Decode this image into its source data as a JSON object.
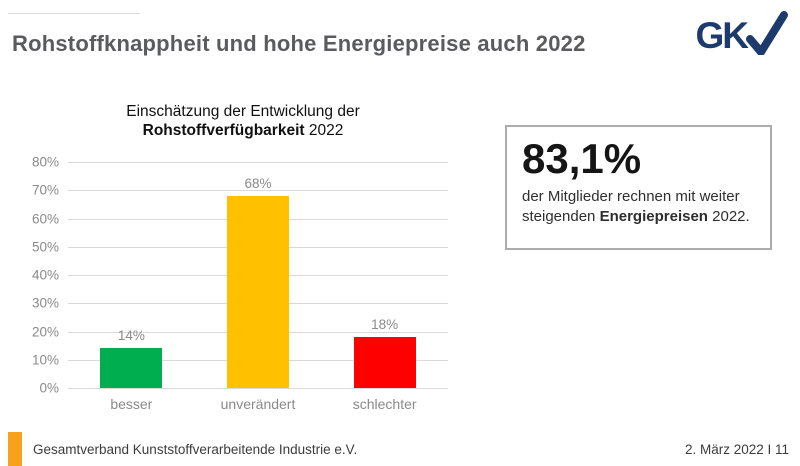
{
  "header": {
    "title": "Rohstoffknappheit und hohe Energiepreise auch 2022",
    "logo": {
      "text": "GK",
      "check_icon": "checkmark-v",
      "color": "#1d3a6d"
    }
  },
  "chart": {
    "title_line1": "Einschätzung der Entwicklung der",
    "title_bold": "Rohstoffverfügbarkeit",
    "title_year": " 2022"
  },
  "chart_data": {
    "type": "bar",
    "title": "Einschätzung der Entwicklung der Rohstoffverfügbarkeit 2022",
    "categories": [
      "besser",
      "unverändert",
      "schlechter"
    ],
    "values": [
      14,
      68,
      18
    ],
    "value_labels": [
      "14%",
      "68%",
      "18%"
    ],
    "bar_colors": [
      "#00ae4f",
      "#ffc000",
      "#fe0000"
    ],
    "xlabel": "",
    "ylabel": "",
    "ylim": [
      0,
      80
    ],
    "ytick_step": 10,
    "ytick_labels": [
      "0%",
      "10%",
      "20%",
      "30%",
      "40%",
      "50%",
      "60%",
      "70%",
      "80%"
    ],
    "grid": true,
    "legend": false
  },
  "stat_box": {
    "value": "83,1%",
    "line1": "der Mitglieder rechnen mit weiter",
    "line2_pre": "steigenden ",
    "line2_bold": "Energiepreisen",
    "line2_post": " 2022."
  },
  "footer": {
    "organization": "Gesamtverband Kunststoffverarbeitende Industrie e.V.",
    "date_slide": "2. März 2022 I 11",
    "accent_color": "#f7a11c"
  },
  "colors": {
    "page_title": "#595b5e",
    "axis_text": "#8a8a8a",
    "gridline": "#d9d9d9",
    "stat_box_border": "#adadad"
  }
}
